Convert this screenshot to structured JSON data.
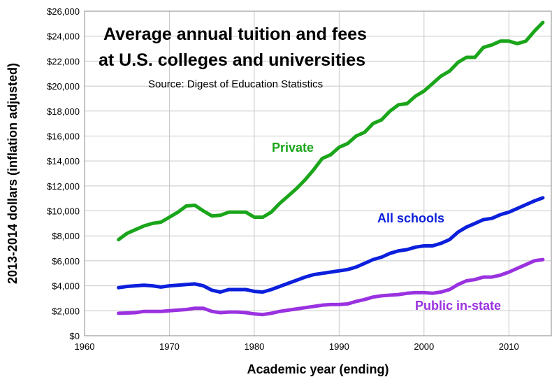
{
  "chart_data": {
    "type": "line",
    "title_lines": [
      "Average annual tuition and fees",
      "at U.S. colleges and universities"
    ],
    "subtitle": "Source: Digest of Education Statistics",
    "xlabel": "Academic year (ending)",
    "ylabel": "2013-2014 dollars (inflation adjusted)",
    "xlim": [
      1960,
      2015
    ],
    "ylim": [
      0,
      26000
    ],
    "xticks": [
      1960,
      1970,
      1980,
      1990,
      2000,
      2010
    ],
    "xtick_labels": [
      "1960",
      "1970",
      "1980",
      "1990",
      "2000",
      "2010"
    ],
    "yticks": [
      0,
      2000,
      4000,
      6000,
      8000,
      10000,
      12000,
      14000,
      16000,
      18000,
      20000,
      22000,
      24000,
      26000
    ],
    "ytick_labels": [
      "$0",
      "$2,000",
      "$4,000",
      "$6,000",
      "$8,000",
      "$10,000",
      "$12,000",
      "$14,000",
      "$16,000",
      "$18,000",
      "$20,000",
      "$22,000",
      "$24,000",
      "$26,000"
    ],
    "grid": true,
    "x": [
      1964,
      1965,
      1966,
      1967,
      1968,
      1969,
      1970,
      1971,
      1972,
      1973,
      1974,
      1975,
      1976,
      1977,
      1978,
      1979,
      1980,
      1981,
      1982,
      1983,
      1984,
      1985,
      1986,
      1987,
      1988,
      1989,
      1990,
      1991,
      1992,
      1993,
      1994,
      1995,
      1996,
      1997,
      1998,
      1999,
      2000,
      2001,
      2002,
      2003,
      2004,
      2005,
      2006,
      2007,
      2008,
      2009,
      2010,
      2011,
      2012,
      2013,
      2014
    ],
    "series": [
      {
        "name": "Private",
        "label": "Private",
        "color": "#1aa51a",
        "values": [
          7700,
          8200,
          8500,
          8800,
          9000,
          9100,
          9500,
          9900,
          10400,
          10450,
          10000,
          9600,
          9650,
          9900,
          9900,
          9900,
          9500,
          9500,
          9900,
          10600,
          11200,
          11800,
          12500,
          13300,
          14200,
          14500,
          15100,
          15400,
          16000,
          16300,
          17000,
          17300,
          18000,
          18500,
          18600,
          19200,
          19600,
          20200,
          20800,
          21200,
          21900,
          22300,
          22300,
          23100,
          23300,
          23600,
          23600,
          23400,
          23600,
          24400,
          25100
        ]
      },
      {
        "name": "All schools",
        "label": "All schools",
        "color": "#0b1fdc",
        "values": [
          3850,
          3950,
          4000,
          4050,
          4000,
          3900,
          4000,
          4050,
          4100,
          4150,
          4000,
          3650,
          3500,
          3700,
          3700,
          3700,
          3550,
          3500,
          3700,
          3950,
          4200,
          4450,
          4700,
          4900,
          5000,
          5100,
          5200,
          5300,
          5500,
          5800,
          6100,
          6300,
          6600,
          6800,
          6900,
          7100,
          7200,
          7200,
          7400,
          7700,
          8300,
          8700,
          9000,
          9300,
          9400,
          9700,
          9900,
          10200,
          10500,
          10800,
          11050
        ]
      },
      {
        "name": "Public in-state",
        "label": "Public in-state",
        "color": "#9a32e0",
        "values": [
          1800,
          1820,
          1850,
          1950,
          1950,
          1950,
          2000,
          2050,
          2100,
          2200,
          2200,
          1950,
          1850,
          1900,
          1900,
          1850,
          1750,
          1700,
          1800,
          1950,
          2050,
          2150,
          2250,
          2350,
          2450,
          2500,
          2500,
          2550,
          2750,
          2900,
          3100,
          3200,
          3250,
          3300,
          3400,
          3450,
          3450,
          3400,
          3500,
          3700,
          4100,
          4400,
          4500,
          4700,
          4700,
          4850,
          5100,
          5400,
          5700,
          6000,
          6100
        ]
      }
    ]
  }
}
